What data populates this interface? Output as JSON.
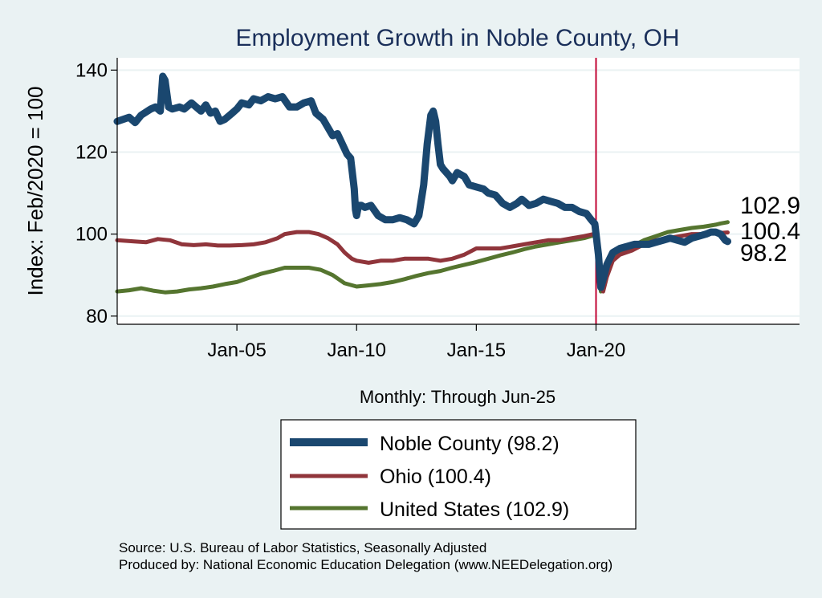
{
  "chart_data": {
    "type": "line",
    "title": "Employment Growth in Noble  County, OH",
    "xlabel": "Monthly: Through Jun-25",
    "ylabel": "Index: Feb/2020 = 100",
    "ylim": [
      78,
      143
    ],
    "xlim": [
      2000.0,
      2028.5
    ],
    "yticks": [
      80,
      100,
      120,
      140
    ],
    "xticks": [
      {
        "label": "Jan-05",
        "value": 2005.0
      },
      {
        "label": "Jan-10",
        "value": 2010.0
      },
      {
        "label": "Jan-15",
        "value": 2015.0
      },
      {
        "label": "Jan-20",
        "value": 2020.0
      }
    ],
    "reference_line_x": 2020.0,
    "series": [
      {
        "name": "Noble  County (98.2)",
        "color": "#1a476f",
        "end_label": "98.2",
        "x": [
          2000.0,
          2000.5,
          2000.75,
          2001.0,
          2001.4,
          2001.6,
          2001.8,
          2001.9,
          2002.0,
          2002.15,
          2002.3,
          2002.6,
          2002.8,
          2003.1,
          2003.3,
          2003.5,
          2003.7,
          2003.9,
          2004.1,
          2004.3,
          2004.5,
          2004.8,
          2005.0,
          2005.2,
          2005.5,
          2005.7,
          2006.0,
          2006.3,
          2006.6,
          2006.9,
          2007.2,
          2007.5,
          2007.8,
          2008.1,
          2008.3,
          2008.6,
          2008.9,
          2009.0,
          2009.2,
          2009.4,
          2009.6,
          2009.75,
          2009.9,
          2009.95,
          2010.0,
          2010.08,
          2010.2,
          2010.35,
          2010.6,
          2010.9,
          2011.2,
          2011.5,
          2011.8,
          2012.1,
          2012.4,
          2012.6,
          2012.8,
          2012.95,
          2013.1,
          2013.2,
          2013.3,
          2013.4,
          2013.5,
          2013.6,
          2013.75,
          2013.9,
          2014.0,
          2014.2,
          2014.5,
          2014.7,
          2015.0,
          2015.3,
          2015.5,
          2015.8,
          2016.1,
          2016.4,
          2016.7,
          2016.9,
          2017.2,
          2017.5,
          2017.8,
          2018.1,
          2018.4,
          2018.7,
          2019.0,
          2019.3,
          2019.6,
          2019.8,
          2019.95,
          2020.0,
          2020.1,
          2020.2,
          2020.3,
          2020.45,
          2020.7,
          2021.0,
          2021.3,
          2021.6,
          2021.9,
          2022.2,
          2022.5,
          2022.8,
          2023.1,
          2023.4,
          2023.7,
          2024.0,
          2024.3,
          2024.6,
          2024.8,
          2025.0,
          2025.2,
          2025.4,
          2025.5
        ],
        "values": [
          127.5,
          128.5,
          127.2,
          129.0,
          130.5,
          131.0,
          130.0,
          138.5,
          137.5,
          131.0,
          130.5,
          131.0,
          130.5,
          132.0,
          131.0,
          130.0,
          131.5,
          129.5,
          130.0,
          127.5,
          128.0,
          129.5,
          130.5,
          132.0,
          131.5,
          133.0,
          132.5,
          133.5,
          133.0,
          133.5,
          131.0,
          131.0,
          132.0,
          132.5,
          129.5,
          128.0,
          125.0,
          124.0,
          124.5,
          122.0,
          119.5,
          118.5,
          111.0,
          106.0,
          104.5,
          107.0,
          107.0,
          106.5,
          107.0,
          104.5,
          103.5,
          103.5,
          104.0,
          103.5,
          102.5,
          104.5,
          112.0,
          122.0,
          129.0,
          130.0,
          127.5,
          122.0,
          117.0,
          116.0,
          115.0,
          114.0,
          113.0,
          115.0,
          114.0,
          112.0,
          111.5,
          111.0,
          110.0,
          109.5,
          107.5,
          106.5,
          107.5,
          108.5,
          107.0,
          107.5,
          108.5,
          108.0,
          107.5,
          106.5,
          106.5,
          105.5,
          105.0,
          103.5,
          102.5,
          100.0,
          95.0,
          87.0,
          89.0,
          92.5,
          95.5,
          96.5,
          97.0,
          97.5,
          97.5,
          97.5,
          98.0,
          98.5,
          99.0,
          98.5,
          98.0,
          99.0,
          99.5,
          100.0,
          100.5,
          100.5,
          100.0,
          98.5,
          98.2
        ]
      },
      {
        "name": "Ohio (100.4)",
        "color": "#90353b",
        "end_label": "100.4",
        "x": [
          2000.0,
          2000.7,
          2001.2,
          2001.7,
          2002.2,
          2002.7,
          2003.2,
          2003.7,
          2004.2,
          2004.7,
          2005.2,
          2005.7,
          2006.2,
          2006.7,
          2007.0,
          2007.5,
          2008.0,
          2008.4,
          2008.8,
          2009.2,
          2009.5,
          2009.8,
          2010.0,
          2010.5,
          2011.0,
          2011.5,
          2012.0,
          2012.5,
          2013.0,
          2013.5,
          2014.0,
          2014.5,
          2015.0,
          2015.5,
          2016.0,
          2016.5,
          2017.0,
          2017.5,
          2018.0,
          2018.5,
          2019.0,
          2019.5,
          2019.9,
          2020.0,
          2020.1,
          2020.2,
          2020.3,
          2020.45,
          2020.7,
          2021.0,
          2021.5,
          2022.0,
          2022.5,
          2023.0,
          2023.5,
          2024.0,
          2024.5,
          2025.0,
          2025.5
        ],
        "values": [
          98.5,
          98.2,
          98.0,
          98.8,
          98.5,
          97.5,
          97.3,
          97.5,
          97.2,
          97.2,
          97.3,
          97.5,
          98.0,
          99.0,
          100.0,
          100.5,
          100.5,
          100.0,
          99.0,
          97.5,
          95.5,
          94.0,
          93.5,
          93.0,
          93.5,
          93.5,
          94.0,
          94.0,
          94.0,
          93.5,
          94.0,
          95.0,
          96.5,
          96.5,
          96.5,
          97.0,
          97.5,
          98.0,
          98.5,
          98.5,
          99.0,
          99.5,
          100.0,
          100.0,
          96.0,
          90.0,
          86.0,
          89.5,
          93.5,
          95.0,
          96.0,
          97.5,
          98.5,
          99.0,
          99.5,
          100.0,
          100.0,
          100.2,
          100.4
        ]
      },
      {
        "name": "United States (102.9)",
        "color": "#55752f",
        "end_label": "102.9",
        "x": [
          2000.0,
          2000.5,
          2001.0,
          2001.5,
          2002.0,
          2002.5,
          2003.0,
          2003.5,
          2004.0,
          2004.5,
          2005.0,
          2005.5,
          2006.0,
          2006.5,
          2007.0,
          2007.5,
          2008.0,
          2008.5,
          2009.0,
          2009.5,
          2010.0,
          2010.5,
          2011.0,
          2011.5,
          2012.0,
          2012.5,
          2013.0,
          2013.5,
          2014.0,
          2014.5,
          2015.0,
          2015.5,
          2016.0,
          2016.5,
          2017.0,
          2017.5,
          2018.0,
          2018.5,
          2019.0,
          2019.5,
          2019.9,
          2020.0,
          2020.1,
          2020.2,
          2020.3,
          2020.45,
          2020.7,
          2021.0,
          2021.5,
          2022.0,
          2022.5,
          2023.0,
          2023.5,
          2024.0,
          2024.5,
          2025.0,
          2025.2,
          2025.5
        ],
        "values": [
          86.0,
          86.3,
          86.8,
          86.2,
          85.8,
          86.0,
          86.5,
          86.8,
          87.2,
          87.8,
          88.3,
          89.3,
          90.3,
          91.0,
          91.8,
          91.8,
          91.8,
          91.3,
          90.0,
          88.0,
          87.2,
          87.5,
          87.8,
          88.3,
          89.0,
          89.8,
          90.5,
          91.0,
          91.8,
          92.5,
          93.2,
          94.0,
          94.8,
          95.5,
          96.3,
          97.0,
          97.5,
          98.0,
          98.5,
          99.0,
          99.7,
          100.0,
          93.0,
          86.0,
          88.5,
          92.0,
          94.0,
          95.5,
          97.0,
          98.5,
          99.5,
          100.5,
          101.0,
          101.5,
          101.8,
          102.3,
          102.6,
          102.9
        ]
      }
    ],
    "legend": {
      "position": "bottom",
      "entries": [
        "Noble  County (98.2)",
        "Ohio (100.4)",
        "United States (102.9)"
      ]
    }
  },
  "footnotes": {
    "source": "Source: U.S. Bureau of Labor Statistics, Seasonally Adjusted",
    "produced": "Produced by: National Economic Education Delegation (www.NEEDelegation.org)"
  },
  "colors": {
    "background": "#eaf2f3",
    "plot_background": "#ffffff",
    "gridline": "#eaf2f3",
    "reference_line": "#c10534",
    "title": "#1a2f5a"
  }
}
